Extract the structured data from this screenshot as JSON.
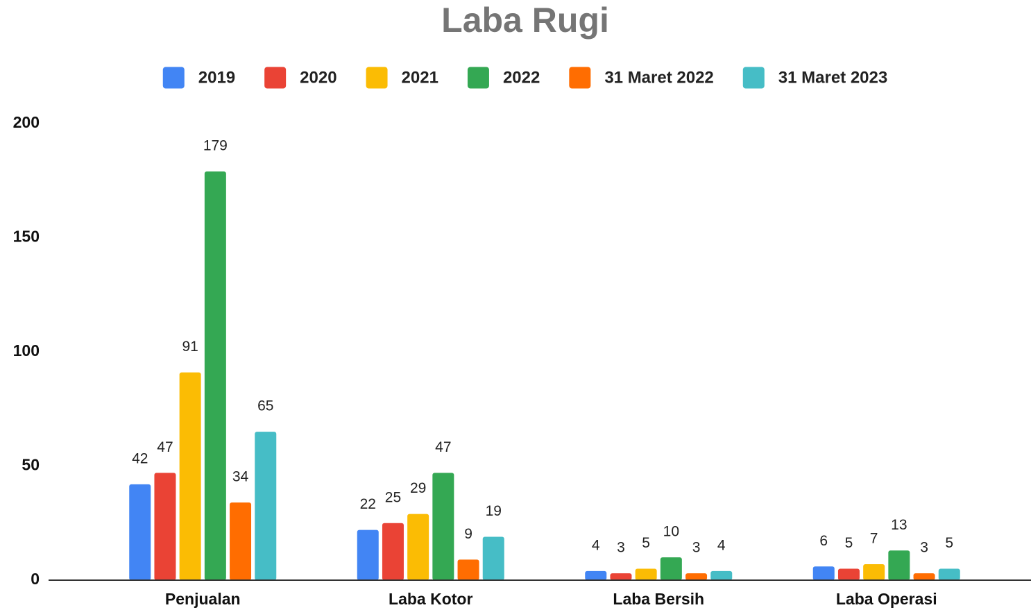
{
  "chart_data": {
    "type": "bar",
    "title": "Laba Rugi",
    "categories": [
      "Penjualan",
      "Laba Kotor",
      "Laba Bersih",
      "Laba Operasi"
    ],
    "series": [
      {
        "name": "2019",
        "color": "#4285f4",
        "values": [
          42,
          22,
          4,
          6
        ]
      },
      {
        "name": "2020",
        "color": "#ea4335",
        "values": [
          47,
          25,
          3,
          5
        ]
      },
      {
        "name": "2021",
        "color": "#fbbc04",
        "values": [
          91,
          29,
          5,
          7
        ]
      },
      {
        "name": "2022",
        "color": "#34a853",
        "values": [
          179,
          47,
          10,
          13
        ]
      },
      {
        "name": "31 Maret 2022",
        "color": "#ff6d01",
        "values": [
          34,
          9,
          3,
          3
        ]
      },
      {
        "name": "31 Maret 2023",
        "color": "#46bdc6",
        "values": [
          65,
          19,
          4,
          5
        ]
      }
    ],
    "ylim": [
      0,
      200
    ],
    "yticks": [
      0,
      50,
      100,
      150,
      200
    ],
    "grid": false,
    "legend": "top"
  }
}
